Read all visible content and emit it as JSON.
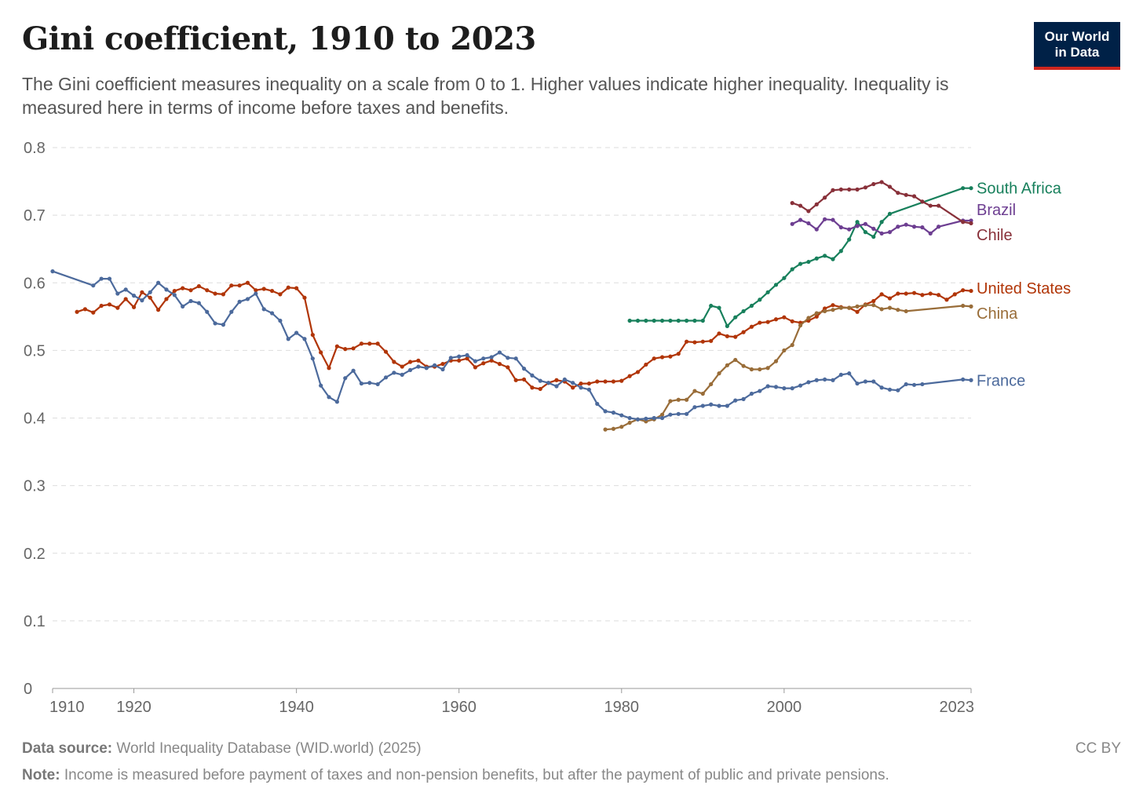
{
  "header": {
    "title": "Gini coefficient, 1910 to 2023",
    "subtitle": "The Gini coefficient measures inequality on a scale from 0 to 1. Higher values indicate higher inequality. Inequality is measured here in terms of income before taxes and benefits.",
    "logo_line1": "Our World",
    "logo_line2": "in Data"
  },
  "footer": {
    "source_label": "Data source:",
    "source_text": "World Inequality Database (WID.world) (2025)",
    "note_label": "Note:",
    "note_text": "Income is measured before payment of taxes and non-pension benefits, but after the payment of public and private pensions.",
    "license": "CC BY"
  },
  "chart_data": {
    "type": "line",
    "title": "Gini coefficient, 1910 to 2023",
    "xlabel": "",
    "ylabel": "",
    "xlim": [
      1910,
      2023
    ],
    "ylim": [
      0,
      0.8
    ],
    "x_ticks": [
      "1910",
      "1920",
      "1940",
      "1960",
      "1980",
      "2000",
      "2023"
    ],
    "x_tick_values": [
      1910,
      1920,
      1940,
      1960,
      1980,
      2000,
      2023
    ],
    "y_ticks": [
      "0",
      "0.1",
      "0.2",
      "0.3",
      "0.4",
      "0.5",
      "0.6",
      "0.7",
      "0.8"
    ],
    "y_tick_values": [
      0,
      0.1,
      0.2,
      0.3,
      0.4,
      0.5,
      0.6,
      0.7,
      0.8
    ],
    "grid": true,
    "series": [
      {
        "name": "South Africa",
        "color": "#18805c",
        "x": [
          1981,
          1982,
          1983,
          1984,
          1985,
          1986,
          1987,
          1988,
          1989,
          1990,
          1991,
          1992,
          1993,
          1994,
          1995,
          1996,
          1997,
          1998,
          1999,
          2000,
          2001,
          2002,
          2003,
          2004,
          2005,
          2006,
          2007,
          2008,
          2009,
          2010,
          2011,
          2012,
          2013,
          2022,
          2023
        ],
        "y": [
          0.544,
          0.544,
          0.544,
          0.544,
          0.544,
          0.544,
          0.544,
          0.544,
          0.544,
          0.544,
          0.566,
          0.563,
          0.536,
          0.549,
          0.558,
          0.566,
          0.575,
          0.586,
          0.597,
          0.607,
          0.62,
          0.628,
          0.631,
          0.636,
          0.64,
          0.635,
          0.647,
          0.664,
          0.69,
          0.675,
          0.668,
          0.69,
          0.702,
          0.74,
          0.74
        ]
      },
      {
        "name": "Brazil",
        "color": "#6d3e91",
        "x": [
          2001,
          2002,
          2003,
          2004,
          2005,
          2006,
          2007,
          2008,
          2009,
          2010,
          2011,
          2012,
          2013,
          2014,
          2015,
          2016,
          2017,
          2018,
          2019,
          2022,
          2023
        ],
        "y": [
          0.687,
          0.693,
          0.688,
          0.679,
          0.694,
          0.693,
          0.682,
          0.679,
          0.684,
          0.687,
          0.68,
          0.673,
          0.675,
          0.683,
          0.686,
          0.683,
          0.682,
          0.673,
          0.683,
          0.692,
          0.692
        ]
      },
      {
        "name": "Chile",
        "color": "#883039",
        "x": [
          2001,
          2002,
          2003,
          2004,
          2005,
          2006,
          2007,
          2008,
          2009,
          2010,
          2011,
          2012,
          2013,
          2014,
          2015,
          2016,
          2017,
          2018,
          2019,
          2022,
          2023
        ],
        "y": [
          0.718,
          0.714,
          0.706,
          0.716,
          0.726,
          0.737,
          0.738,
          0.738,
          0.738,
          0.741,
          0.746,
          0.749,
          0.742,
          0.733,
          0.73,
          0.728,
          0.72,
          0.714,
          0.714,
          0.69,
          0.688
        ]
      },
      {
        "name": "United States",
        "color": "#b13507",
        "x": [
          1913,
          1914,
          1915,
          1916,
          1917,
          1918,
          1919,
          1920,
          1921,
          1922,
          1923,
          1924,
          1925,
          1926,
          1927,
          1928,
          1929,
          1930,
          1931,
          1932,
          1933,
          1934,
          1935,
          1936,
          1937,
          1938,
          1939,
          1940,
          1941,
          1942,
          1943,
          1944,
          1945,
          1946,
          1947,
          1948,
          1949,
          1950,
          1951,
          1952,
          1953,
          1954,
          1955,
          1956,
          1957,
          1958,
          1959,
          1960,
          1961,
          1962,
          1963,
          1964,
          1965,
          1966,
          1967,
          1968,
          1969,
          1970,
          1971,
          1972,
          1973,
          1974,
          1975,
          1976,
          1977,
          1978,
          1979,
          1980,
          1981,
          1982,
          1983,
          1984,
          1985,
          1986,
          1987,
          1988,
          1989,
          1990,
          1991,
          1992,
          1993,
          1994,
          1995,
          1996,
          1997,
          1998,
          1999,
          2000,
          2001,
          2002,
          2003,
          2004,
          2005,
          2006,
          2007,
          2008,
          2009,
          2010,
          2011,
          2012,
          2013,
          2014,
          2015,
          2016,
          2017,
          2018,
          2019,
          2020,
          2021,
          2022,
          2023
        ],
        "y": [
          0.557,
          0.561,
          0.556,
          0.566,
          0.568,
          0.563,
          0.576,
          0.564,
          0.586,
          0.578,
          0.56,
          0.576,
          0.588,
          0.592,
          0.589,
          0.595,
          0.589,
          0.584,
          0.583,
          0.596,
          0.596,
          0.6,
          0.589,
          0.591,
          0.588,
          0.583,
          0.593,
          0.592,
          0.578,
          0.523,
          0.497,
          0.474,
          0.506,
          0.502,
          0.503,
          0.51,
          0.51,
          0.51,
          0.498,
          0.483,
          0.476,
          0.483,
          0.485,
          0.476,
          0.476,
          0.48,
          0.485,
          0.485,
          0.488,
          0.475,
          0.481,
          0.485,
          0.48,
          0.475,
          0.456,
          0.457,
          0.445,
          0.443,
          0.452,
          0.456,
          0.454,
          0.445,
          0.451,
          0.451,
          0.454,
          0.454,
          0.454,
          0.455,
          0.462,
          0.468,
          0.479,
          0.488,
          0.49,
          0.491,
          0.495,
          0.513,
          0.512,
          0.513,
          0.514,
          0.525,
          0.521,
          0.52,
          0.527,
          0.535,
          0.541,
          0.542,
          0.546,
          0.549,
          0.543,
          0.541,
          0.544,
          0.55,
          0.562,
          0.567,
          0.564,
          0.563,
          0.557,
          0.568,
          0.573,
          0.583,
          0.577,
          0.584,
          0.584,
          0.585,
          0.582,
          0.584,
          0.582,
          0.575,
          0.583,
          0.589,
          0.588
        ]
      },
      {
        "name": "China",
        "color": "#996d39",
        "x": [
          1978,
          1979,
          1980,
          1981,
          1982,
          1983,
          1984,
          1985,
          1986,
          1987,
          1988,
          1989,
          1990,
          1991,
          1992,
          1993,
          1994,
          1995,
          1996,
          1997,
          1998,
          1999,
          2000,
          2001,
          2002,
          2003,
          2004,
          2005,
          2006,
          2007,
          2008,
          2009,
          2010,
          2011,
          2012,
          2013,
          2014,
          2015,
          2022,
          2023
        ],
        "y": [
          0.383,
          0.384,
          0.387,
          0.393,
          0.398,
          0.395,
          0.398,
          0.405,
          0.425,
          0.427,
          0.427,
          0.44,
          0.436,
          0.45,
          0.466,
          0.478,
          0.486,
          0.477,
          0.472,
          0.472,
          0.474,
          0.484,
          0.5,
          0.508,
          0.537,
          0.548,
          0.555,
          0.558,
          0.56,
          0.563,
          0.563,
          0.565,
          0.567,
          0.567,
          0.561,
          0.563,
          0.56,
          0.558,
          0.566,
          0.565
        ]
      },
      {
        "name": "France",
        "color": "#4c6a9c",
        "x": [
          1910,
          1915,
          1916,
          1917,
          1918,
          1919,
          1920,
          1921,
          1922,
          1923,
          1924,
          1925,
          1926,
          1927,
          1928,
          1929,
          1930,
          1931,
          1932,
          1933,
          1934,
          1935,
          1936,
          1937,
          1938,
          1939,
          1940,
          1941,
          1942,
          1943,
          1944,
          1945,
          1946,
          1947,
          1948,
          1949,
          1950,
          1951,
          1952,
          1953,
          1954,
          1955,
          1956,
          1957,
          1958,
          1959,
          1960,
          1961,
          1962,
          1963,
          1964,
          1965,
          1966,
          1967,
          1968,
          1969,
          1970,
          1971,
          1972,
          1973,
          1974,
          1975,
          1976,
          1977,
          1978,
          1979,
          1980,
          1981,
          1982,
          1983,
          1984,
          1985,
          1986,
          1987,
          1988,
          1989,
          1990,
          1991,
          1992,
          1993,
          1994,
          1995,
          1996,
          1997,
          1998,
          1999,
          2000,
          2001,
          2002,
          2003,
          2004,
          2005,
          2006,
          2007,
          2008,
          2009,
          2010,
          2011,
          2012,
          2013,
          2014,
          2015,
          2016,
          2017,
          2022,
          2023
        ],
        "y": [
          0.617,
          0.596,
          0.606,
          0.606,
          0.584,
          0.59,
          0.581,
          0.574,
          0.586,
          0.6,
          0.59,
          0.582,
          0.565,
          0.573,
          0.57,
          0.557,
          0.54,
          0.538,
          0.557,
          0.572,
          0.576,
          0.584,
          0.561,
          0.555,
          0.544,
          0.517,
          0.526,
          0.517,
          0.488,
          0.448,
          0.431,
          0.424,
          0.459,
          0.47,
          0.451,
          0.452,
          0.45,
          0.46,
          0.467,
          0.464,
          0.471,
          0.476,
          0.474,
          0.478,
          0.472,
          0.489,
          0.491,
          0.493,
          0.484,
          0.488,
          0.49,
          0.497,
          0.489,
          0.488,
          0.473,
          0.463,
          0.455,
          0.452,
          0.447,
          0.457,
          0.452,
          0.445,
          0.442,
          0.421,
          0.41,
          0.408,
          0.404,
          0.4,
          0.398,
          0.399,
          0.4,
          0.4,
          0.405,
          0.406,
          0.406,
          0.416,
          0.418,
          0.42,
          0.418,
          0.418,
          0.426,
          0.428,
          0.436,
          0.44,
          0.447,
          0.446,
          0.444,
          0.444,
          0.448,
          0.453,
          0.456,
          0.457,
          0.456,
          0.464,
          0.466,
          0.451,
          0.454,
          0.454,
          0.445,
          0.442,
          0.441,
          0.45,
          0.449,
          0.45,
          0.457,
          0.456
        ]
      }
    ]
  }
}
